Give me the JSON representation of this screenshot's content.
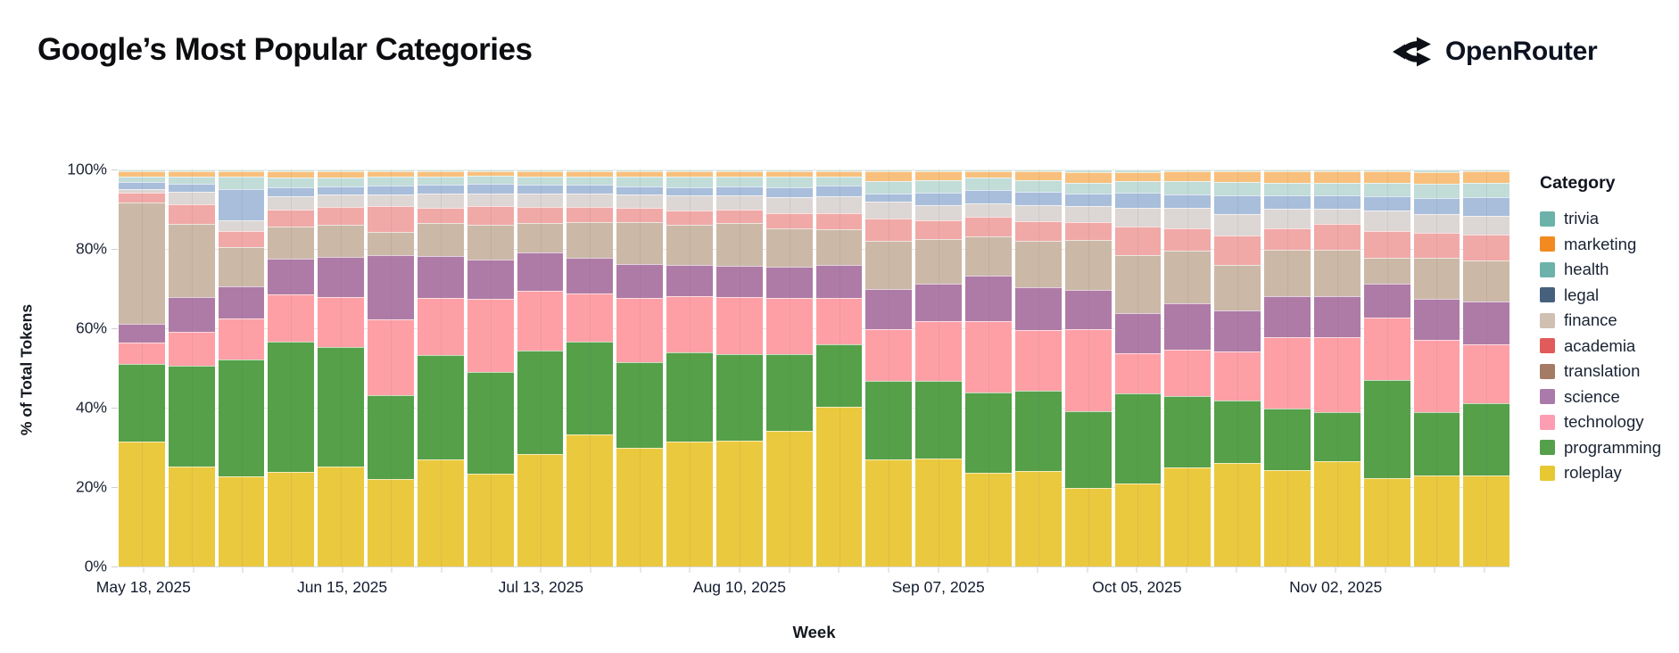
{
  "header": {
    "title": "Google’s Most Popular Categories",
    "brand": "OpenRouter"
  },
  "chart_data": {
    "type": "bar",
    "variant": "stacked-100-percent",
    "title": "Google’s Most Popular Categories",
    "xlabel": "Week",
    "ylabel": "% of Total Tokens",
    "legend_title": "Category",
    "legend_position": "right",
    "grid": true,
    "ylim": [
      0,
      100
    ],
    "y_ticks": [
      "0%",
      "20%",
      "40%",
      "60%",
      "80%",
      "100%"
    ],
    "x_label_every": 4,
    "x_tick_labels_shown": [
      "May 18, 2025",
      "Jun 15, 2025",
      "Jul 13, 2025",
      "Aug 10, 2025",
      "Sep 07, 2025",
      "Oct 05, 2025",
      "Nov 02, 2025"
    ],
    "weeks": [
      "May 18, 2025",
      "May 25, 2025",
      "Jun 01, 2025",
      "Jun 08, 2025",
      "Jun 15, 2025",
      "Jun 22, 2025",
      "Jun 29, 2025",
      "Jul 06, 2025",
      "Jul 13, 2025",
      "Jul 20, 2025",
      "Jul 27, 2025",
      "Aug 03, 2025",
      "Aug 10, 2025",
      "Aug 17, 2025",
      "Aug 24, 2025",
      "Aug 31, 2025",
      "Sep 07, 2025",
      "Sep 14, 2025",
      "Sep 21, 2025",
      "Sep 28, 2025",
      "Oct 05, 2025",
      "Oct 12, 2025",
      "Oct 19, 2025",
      "Oct 26, 2025",
      "Nov 02, 2025",
      "Nov 09, 2025",
      "Nov 16, 2025",
      "Nov 23, 2025"
    ],
    "series": [
      {
        "name": "trivia",
        "legend_color": "#6cb2aa",
        "bar_color": "#c6e0dc",
        "textured": true,
        "values": [
          0.3,
          0.3,
          0.3,
          0.3,
          0.3,
          0.3,
          0.3,
          0.2,
          0.3,
          0.3,
          0.3,
          0.3,
          0.3,
          0.3,
          0.3,
          0.3,
          0.3,
          0.3,
          0.3,
          0.4,
          0.4,
          0.2,
          0.2,
          0.2,
          0.2,
          0.2,
          0.4,
          0.2
        ]
      },
      {
        "name": "marketing",
        "legend_color": "#f28a21",
        "bar_color": "#f8c07c",
        "textured": false,
        "values": [
          1.0,
          1.1,
          1.1,
          1.3,
          1.3,
          1.2,
          1.0,
          1.0,
          1.0,
          1.0,
          1.1,
          1.0,
          1.0,
          1.0,
          1.0,
          2.3,
          1.9,
          1.2,
          1.9,
          2.6,
          2.2,
          2.4,
          2.6,
          2.8,
          2.8,
          2.8,
          2.9,
          2.8
        ]
      },
      {
        "name": "health",
        "legend_color": "#6cb2aa",
        "bar_color": "#c2dcd8",
        "textured": false,
        "values": [
          1.2,
          1.5,
          2.9,
          2.4,
          2.0,
          1.9,
          2.0,
          1.8,
          1.9,
          1.9,
          2.3,
          2.7,
          2.4,
          2.7,
          2.2,
          3.0,
          3.0,
          3.0,
          2.8,
          2.6,
          2.6,
          3.2,
          3.1,
          3.1,
          2.9,
          3.3,
          3.4,
          3.5
        ]
      },
      {
        "name": "legal",
        "legend_color": "#47617c",
        "bar_color": "#a8bedb",
        "textured": true,
        "values": [
          1.7,
          1.9,
          8.0,
          2.1,
          2.0,
          2.1,
          2.0,
          2.4,
          2.1,
          2.0,
          1.8,
          1.9,
          2.0,
          2.2,
          2.6,
          1.8,
          3.0,
          3.3,
          3.2,
          3.0,
          3.7,
          3.2,
          4.8,
          3.2,
          3.4,
          3.3,
          4.0,
          4.6
        ]
      },
      {
        "name": "finance",
        "legend_color": "#cfc0b1",
        "bar_color": "#dcd6d4",
        "textured": true,
        "values": [
          0.7,
          3.0,
          2.5,
          3.1,
          3.0,
          2.8,
          3.5,
          2.8,
          3.2,
          3.3,
          3.4,
          3.7,
          3.7,
          4.0,
          4.1,
          4.1,
          3.7,
          3.3,
          4.0,
          3.7,
          4.8,
          5.0,
          5.2,
          4.8,
          3.7,
          5.2,
          4.5,
          4.5
        ]
      },
      {
        "name": "academia",
        "legend_color": "#e15b5b",
        "bar_color": "#f0a9a7",
        "textured": false,
        "values": [
          2.3,
          4.9,
          3.8,
          4.3,
          4.3,
          6.5,
          3.7,
          4.7,
          3.9,
          3.5,
          3.3,
          3.3,
          3.2,
          3.7,
          3.9,
          5.6,
          4.8,
          4.8,
          4.8,
          4.4,
          7.1,
          5.5,
          7.4,
          5.2,
          6.3,
          6.7,
          6.3,
          6.6
        ]
      },
      {
        "name": "translation",
        "legend_color": "#a47c64",
        "bar_color": "#cbb8a6",
        "textured": false,
        "values": [
          31.0,
          18.5,
          10.1,
          8.0,
          8.1,
          5.8,
          8.4,
          8.7,
          7.6,
          9.0,
          10.7,
          10.4,
          10.9,
          9.8,
          9.1,
          12.2,
          11.1,
          10.0,
          11.9,
          12.6,
          14.8,
          13.4,
          11.5,
          11.8,
          11.8,
          6.3,
          10.4,
          10.4
        ]
      },
      {
        "name": "science",
        "legend_color": "#aa7aaa",
        "bar_color": "#ae7ba7",
        "textured": false,
        "values": [
          4.8,
          8.8,
          7.9,
          9.0,
          10.3,
          16.5,
          10.7,
          9.9,
          9.6,
          9.0,
          8.6,
          7.8,
          7.8,
          8.0,
          8.1,
          10.0,
          9.6,
          11.5,
          10.7,
          10.0,
          10.0,
          11.8,
          10.4,
          10.4,
          10.4,
          8.5,
          10.3,
          10.8
        ]
      },
      {
        "name": "technology",
        "legend_color": "#fc9db1",
        "bar_color": "#fe9fa6",
        "textured": false,
        "values": [
          5.1,
          8.5,
          10.5,
          12.1,
          12.7,
          19.5,
          14.6,
          18.8,
          15.3,
          12.0,
          16.6,
          14.4,
          14.8,
          14.3,
          11.9,
          13.3,
          15.1,
          18.2,
          15.4,
          20.9,
          10.2,
          11.8,
          12.5,
          18.1,
          19.0,
          15.9,
          18.5,
          15.0
        ]
      },
      {
        "name": "programming",
        "legend_color": "#55a04b",
        "bar_color": "#55a049",
        "textured": false,
        "values": [
          20.0,
          25.8,
          30.0,
          33.6,
          30.7,
          21.6,
          27.0,
          26.0,
          26.7,
          23.5,
          22.0,
          22.9,
          22.3,
          19.8,
          16.0,
          20.0,
          19.9,
          20.4,
          20.5,
          19.5,
          22.9,
          18.1,
          15.8,
          15.7,
          12.5,
          25.3,
          16.1,
          18.4
        ]
      },
      {
        "name": "roleplay",
        "legend_color": "#e7c832",
        "bar_color": "#eac93e",
        "textured": false,
        "values": [
          32.0,
          25.6,
          23.0,
          24.3,
          25.8,
          22.6,
          27.5,
          23.7,
          28.8,
          33.5,
          30.6,
          32.3,
          32.5,
          35.1,
          41.0,
          27.4,
          27.6,
          24.0,
          24.5,
          20.0,
          21.3,
          25.4,
          26.5,
          24.7,
          27.0,
          22.5,
          23.2,
          23.2
        ]
      }
    ]
  }
}
